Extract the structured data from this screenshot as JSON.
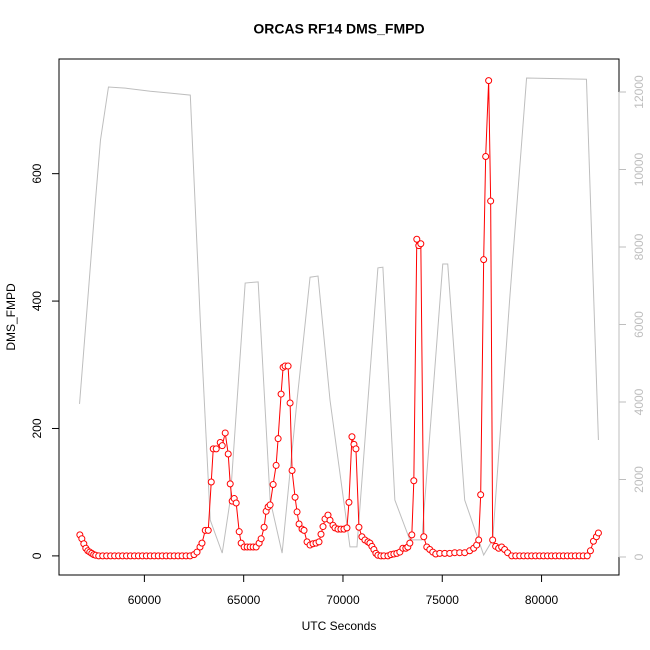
{
  "chart_data": {
    "type": "line",
    "title": "ORCAS RF14 DMS_FMPD",
    "x_label": "UTC Seconds",
    "y_label": "DMS_FMPD",
    "xlim": [
      55700,
      83900
    ],
    "ylim": [
      -30,
      780
    ],
    "y2lim": [
      -465,
      12852
    ],
    "xticks": [
      60000,
      65000,
      70000,
      75000,
      80000
    ],
    "yticks": [
      0,
      200,
      400,
      600
    ],
    "y2ticks": [
      0,
      2000,
      4000,
      6000,
      8000,
      10000,
      12000
    ],
    "y2color": "#bebebe",
    "series": [
      {
        "color": "#bebebe",
        "axis": "y2",
        "x": [
          56734,
          57186,
          57538,
          57789,
          58191,
          59045,
          60302,
          61307,
          62312,
          62814,
          63317,
          63920,
          64322,
          65075,
          65729,
          66332,
          66935,
          67688,
          68342,
          68744,
          69347,
          70352,
          70704,
          71759,
          72010,
          72613,
          73367,
          73970,
          75025,
          75276,
          76130,
          77085,
          77538,
          78392,
          79246,
          82261,
          82864
        ],
        "values": [
          3950,
          6890,
          9210,
          10760,
          12130,
          12100,
          12020,
          11970,
          11920,
          6110,
          950,
          100,
          1470,
          7070,
          7100,
          1470,
          100,
          4050,
          7220,
          7250,
          4050,
          260,
          260,
          7460,
          7480,
          1470,
          440,
          440,
          7560,
          7560,
          1470,
          50,
          440,
          6630,
          12360,
          12330,
          3020
        ]
      },
      {
        "color": "#ff0000",
        "marker": "circle",
        "x": [
          56750,
          56850,
          56950,
          57050,
          57150,
          57250,
          57350,
          57450,
          57550,
          57700,
          57900,
          58100,
          58300,
          58500,
          58700,
          58900,
          59100,
          59300,
          59500,
          59700,
          59900,
          60100,
          60300,
          60500,
          60700,
          60900,
          61100,
          61300,
          61500,
          61700,
          61900,
          62100,
          62300,
          62500,
          62650,
          62800,
          62900,
          63065,
          63216,
          63367,
          63467,
          63618,
          63819,
          63920,
          64070,
          64221,
          64322,
          64422,
          64523,
          64623,
          64774,
          64874,
          65025,
          65176,
          65327,
          65477,
          65628,
          65779,
          65879,
          66030,
          66131,
          66231,
          66332,
          66482,
          66633,
          66734,
          66884,
          66985,
          67085,
          67236,
          67337,
          67437,
          67588,
          67688,
          67789,
          67940,
          68040,
          68191,
          68342,
          68492,
          68643,
          68794,
          68894,
          68995,
          69095,
          69246,
          69347,
          69497,
          69598,
          69749,
          69899,
          70050,
          70201,
          70301,
          70452,
          70553,
          70653,
          70804,
          70955,
          71106,
          71256,
          71357,
          71457,
          71558,
          71658,
          71759,
          71909,
          72060,
          72261,
          72412,
          72563,
          72713,
          72864,
          73015,
          73166,
          73266,
          73367,
          73467,
          73568,
          73718,
          73819,
          73920,
          74070,
          74221,
          74372,
          74523,
          74673,
          74874,
          75126,
          75377,
          75628,
          75879,
          76131,
          76382,
          76583,
          76733,
          76834,
          76935,
          77085,
          77186,
          77336,
          77437,
          77538,
          77688,
          77839,
          77990,
          78140,
          78291,
          78500,
          78700,
          78900,
          79100,
          79300,
          79500,
          79700,
          79900,
          80100,
          80300,
          80500,
          80700,
          80900,
          81100,
          81300,
          81500,
          81700,
          81900,
          82100,
          82300,
          82462,
          82613,
          82764,
          82864
        ],
        "values": [
          33,
          27,
          19,
          12,
          8,
          6,
          4,
          2,
          1,
          0,
          0,
          0,
          0,
          0,
          0,
          0,
          0,
          0,
          0,
          0,
          0,
          0,
          0,
          0,
          0,
          0,
          0,
          0,
          0,
          0,
          0,
          0,
          0,
          2,
          6,
          14,
          20,
          40,
          40,
          116,
          168,
          168,
          178,
          173,
          193,
          160,
          113,
          86,
          90,
          83,
          38,
          20,
          14,
          14,
          14,
          14,
          14,
          20,
          27,
          45,
          70,
          77,
          80,
          112,
          142,
          184,
          254,
          296,
          298,
          298,
          240,
          134,
          92,
          69,
          50,
          42,
          40,
          22,
          17,
          19,
          20,
          22,
          34,
          46,
          58,
          64,
          56,
          48,
          44,
          42,
          42,
          42,
          44,
          84,
          187,
          175,
          168,
          45,
          30,
          25,
          22,
          20,
          15,
          10,
          4,
          1,
          0,
          0,
          0,
          2,
          3,
          4,
          6,
          12,
          12,
          14,
          20,
          33,
          118,
          497,
          487,
          490,
          30,
          14,
          10,
          6,
          3,
          4,
          4,
          4,
          5,
          5,
          5,
          8,
          12,
          17,
          25,
          96,
          465,
          627,
          746,
          557,
          25,
          15,
          12,
          14,
          10,
          5,
          0,
          0,
          0,
          0,
          0,
          0,
          0,
          0,
          0,
          0,
          0,
          0,
          0,
          0,
          0,
          0,
          0,
          0,
          0,
          0,
          8,
          23,
          30,
          36
        ]
      }
    ]
  }
}
